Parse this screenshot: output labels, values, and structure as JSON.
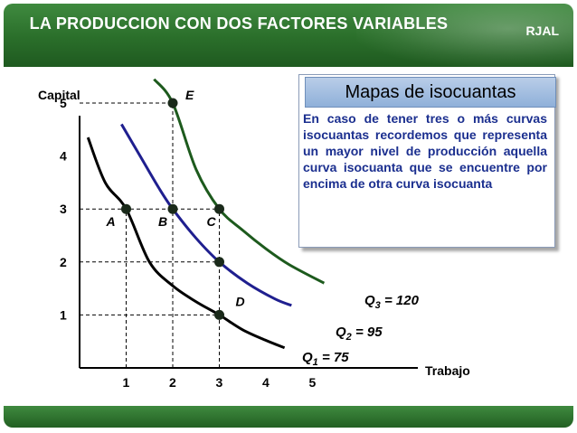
{
  "slide": {
    "title": "LA PRODUCCION CON DOS FACTORES VARIABLES",
    "brand": "RJAL",
    "colors": {
      "header": "#2a6e2a",
      "info_text": "#1b2f8f"
    }
  },
  "info_box": {
    "title": "Mapas de isocuantas",
    "text": "En caso de tener tres o más curvas isocuantas recordemos que representa un mayor nivel de producción aquella curva isocuanta que se encuentre por encima de otra curva isocuanta"
  },
  "chart_data": {
    "type": "line",
    "ylabel": "Capital",
    "xlabel": "Trabajo",
    "x_ticks": [
      "1",
      "2",
      "3",
      "4",
      "5"
    ],
    "y_ticks": [
      "1",
      "2",
      "3",
      "4",
      "5"
    ],
    "xlim": [
      0,
      5.2
    ],
    "ylim": [
      0,
      5.3
    ],
    "grid": false,
    "series": [
      {
        "name": "Q1 = 75",
        "label_main": "Q",
        "label_sub": "1",
        "label_value": "= 75",
        "color": "#000000",
        "points": [
          [
            0.18,
            4.35
          ],
          [
            0.55,
            3.5
          ],
          [
            1,
            3
          ],
          [
            1.5,
            2.0
          ],
          [
            2,
            1.55
          ],
          [
            2.5,
            1.25
          ],
          [
            3,
            1
          ],
          [
            3.5,
            0.72
          ],
          [
            4,
            0.52
          ],
          [
            4.4,
            0.38
          ]
        ]
      },
      {
        "name": "Q2 = 95",
        "label_main": "Q",
        "label_sub": "2",
        "label_value": "= 95",
        "color": "#1f1f8f",
        "points": [
          [
            0.9,
            4.6
          ],
          [
            1.3,
            4.0
          ],
          [
            1.7,
            3.4
          ],
          [
            2,
            3
          ],
          [
            2.5,
            2.45
          ],
          [
            3,
            2
          ],
          [
            3.6,
            1.6
          ],
          [
            4.2,
            1.3
          ],
          [
            4.55,
            1.18
          ]
        ]
      },
      {
        "name": "Q3 = 120",
        "label_main": "Q",
        "label_sub": "3",
        "label_value": "= 120",
        "color": "#1d5a1d",
        "points": [
          [
            1.6,
            5.45
          ],
          [
            2,
            5
          ],
          [
            2.5,
            3.75
          ],
          [
            3,
            3
          ],
          [
            3.5,
            2.6
          ],
          [
            4,
            2.25
          ],
          [
            4.5,
            1.95
          ],
          [
            5.25,
            1.6
          ]
        ]
      }
    ],
    "points": [
      {
        "label": "A",
        "x": 1,
        "y": 3
      },
      {
        "label": "B",
        "x": 2,
        "y": 3
      },
      {
        "label": "C",
        "x": 3,
        "y": 3
      },
      {
        "label": "D",
        "x": 3,
        "y": 1
      },
      {
        "label": "E",
        "x": 2,
        "y": 5
      },
      {
        "label": "",
        "x": 3,
        "y": 2
      }
    ],
    "guides": [
      {
        "from": [
          0,
          5
        ],
        "to": [
          2,
          5
        ]
      },
      {
        "from": [
          2,
          0
        ],
        "to": [
          2,
          5
        ]
      },
      {
        "from": [
          0,
          3
        ],
        "to": [
          3,
          3
        ]
      },
      {
        "from": [
          1,
          0
        ],
        "to": [
          1,
          3
        ]
      },
      {
        "from": [
          3,
          0
        ],
        "to": [
          3,
          3
        ]
      },
      {
        "from": [
          0,
          2
        ],
        "to": [
          3,
          2
        ]
      },
      {
        "from": [
          0,
          1
        ],
        "to": [
          3,
          1
        ]
      }
    ]
  }
}
